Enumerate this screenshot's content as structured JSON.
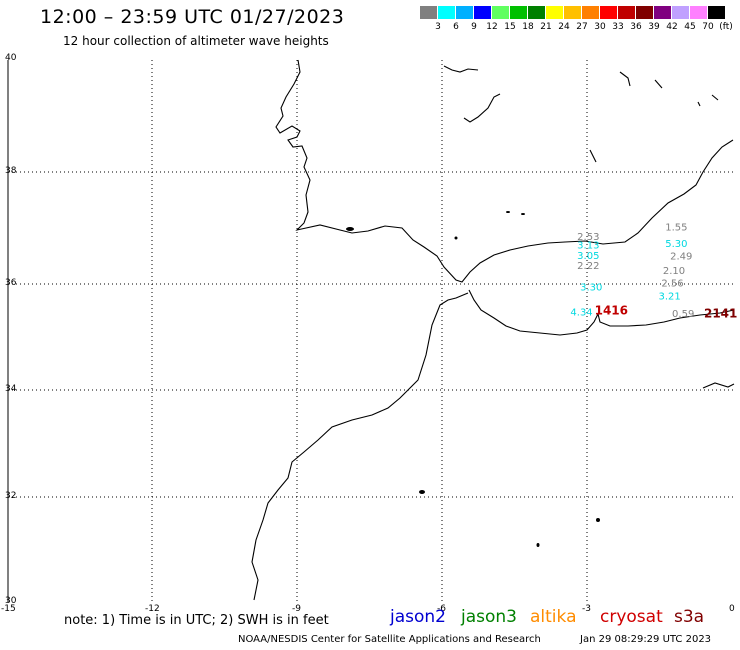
{
  "title": "12:00 – 23:59 UTC 01/27/2023",
  "subtitle": "12 hour collection of altimeter wave heights",
  "scale": {
    "colors": [
      "#808080",
      "#00ffff",
      "#00b0ff",
      "#0000ff",
      "#60ff60",
      "#00c000",
      "#008000",
      "#ffff00",
      "#ffc000",
      "#ff8000",
      "#ff0000",
      "#c00000",
      "#800000",
      "#800080",
      "#c0a0ff",
      "#ff80ff",
      "#000000"
    ],
    "labels": [
      "3",
      "6",
      "9",
      "12",
      "15",
      "18",
      "21",
      "24",
      "27",
      "30",
      "33",
      "36",
      "39",
      "42",
      "45",
      "70",
      "(ft)"
    ]
  },
  "axes": {
    "y_labels": [
      "40",
      "38",
      "36",
      "34",
      "32",
      "30"
    ],
    "x_labels": [
      "-15",
      "-12",
      "-9",
      "-6",
      "-3",
      "0"
    ]
  },
  "observations": [
    {
      "text": "2.53",
      "color": "#808080",
      "lon": -3.24,
      "lat": 36.68
    },
    {
      "text": "3.13",
      "color": "#00d8e0",
      "lon": -3.24,
      "lat": 36.52
    },
    {
      "text": "3.05",
      "color": "#00d8e0",
      "lon": -3.24,
      "lat": 36.33
    },
    {
      "text": "2.22",
      "color": "#808080",
      "lon": -3.24,
      "lat": 36.14
    },
    {
      "text": "3.30",
      "color": "#00d8e0",
      "lon": -3.18,
      "lat": 35.75
    },
    {
      "text": "4.34",
      "color": "#00d8e0",
      "lon": -3.38,
      "lat": 35.29
    },
    {
      "text": "1416",
      "color": "#c00000",
      "lon": -2.88,
      "lat": 35.3
    },
    {
      "text": "1.55",
      "color": "#808080",
      "lon": -1.42,
      "lat": 36.85
    },
    {
      "text": "5.30",
      "color": "#00d8e0",
      "lon": -1.42,
      "lat": 36.55
    },
    {
      "text": "2.49",
      "color": "#808080",
      "lon": -1.32,
      "lat": 36.32
    },
    {
      "text": "2.10",
      "color": "#808080",
      "lon": -1.47,
      "lat": 36.05
    },
    {
      "text": "2.56",
      "color": "#808080",
      "lon": -1.5,
      "lat": 35.82
    },
    {
      "text": "3.21",
      "color": "#00d8e0",
      "lon": -1.56,
      "lat": 35.58
    },
    {
      "text": "0.59",
      "color": "#808080",
      "lon": -1.28,
      "lat": 35.26
    },
    {
      "text": "2141",
      "color": "#800000",
      "lon": -0.62,
      "lat": 35.25
    }
  ],
  "note": "note: 1) Time is in UTC; 2) SWH is in feet",
  "legend": [
    {
      "name": "jason2",
      "color": "#0000d0"
    },
    {
      "name": "jason3",
      "color": "#008000"
    },
    {
      "name": "altika",
      "color": "#ff8c00"
    },
    {
      "name": "cryosat",
      "color": "#d00000"
    },
    {
      "name": "s3a",
      "color": "#800000"
    }
  ],
  "credit": "NOAA/NESDIS Center for Satellite Applications and Research",
  "timestamp": "Jan 29 08:29:29 UTC 2023"
}
